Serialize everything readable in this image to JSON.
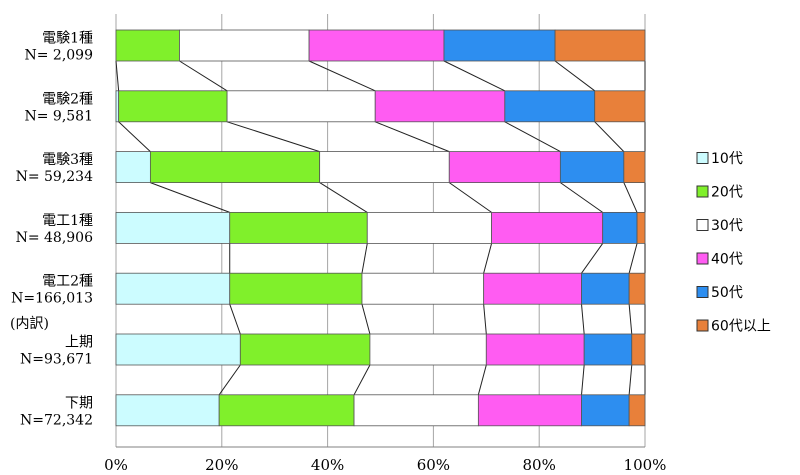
{
  "chart_data": {
    "type": "bar",
    "orientation": "horizontal",
    "stacked": "percent",
    "categories": [
      {
        "label": "電験1種",
        "sublabel": "N= 2,099"
      },
      {
        "label": "電験2種",
        "sublabel": "N= 9,581"
      },
      {
        "label": "電験3種",
        "sublabel": "N= 59,234"
      },
      {
        "label": "電工1種",
        "sublabel": "N= 48,906"
      },
      {
        "label": "電工2種",
        "sublabel": "N=166,013"
      },
      {
        "label": "上期",
        "sublabel": "N=93,671",
        "group": "(内訳)"
      },
      {
        "label": "下期",
        "sublabel": "N=72,342"
      }
    ],
    "series": [
      {
        "name": "10代",
        "color": "#ccfcff",
        "values": [
          0.0,
          0.5,
          6.5,
          21.5,
          21.5,
          23.5,
          19.5
        ]
      },
      {
        "name": "20代",
        "color": "#80f02b",
        "values": [
          12.0,
          20.5,
          32.0,
          26.0,
          25.0,
          24.5,
          25.5
        ]
      },
      {
        "name": "30代",
        "color": "#ffffff",
        "values": [
          24.5,
          28.0,
          24.5,
          23.5,
          23.0,
          22.0,
          23.5
        ]
      },
      {
        "name": "40代",
        "color": "#ff5cf2",
        "values": [
          25.5,
          24.5,
          21.0,
          21.0,
          18.5,
          18.5,
          19.5
        ]
      },
      {
        "name": "50代",
        "color": "#2d8ef0",
        "values": [
          21.0,
          17.0,
          12.0,
          6.5,
          9.0,
          9.0,
          9.0
        ]
      },
      {
        "name": "60代以上",
        "color": "#e8803a",
        "values": [
          17.0,
          9.5,
          4.0,
          1.5,
          3.0,
          2.5,
          3.0
        ]
      }
    ],
    "xlim": [
      0,
      100
    ],
    "xticks": [
      "0%",
      "20%",
      "40%",
      "60%",
      "80%",
      "100%"
    ],
    "grid": true,
    "series_lines": true,
    "legend": "right"
  }
}
